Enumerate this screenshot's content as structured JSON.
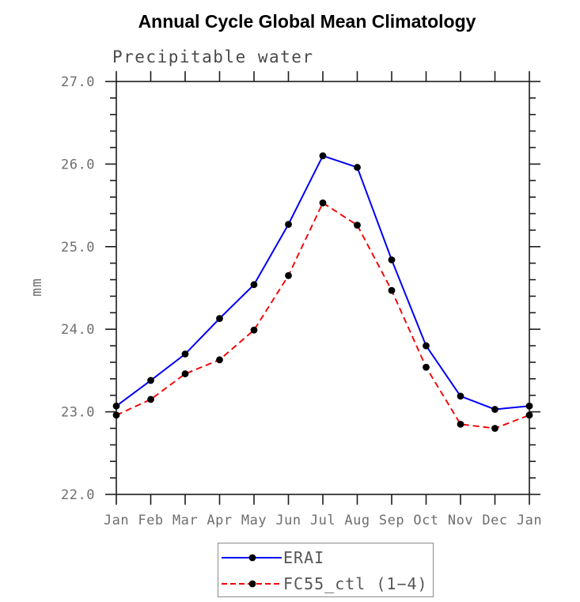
{
  "chart_data": {
    "type": "line",
    "title": "Annual Cycle Global Mean Climatology",
    "subtitle": "Precipitable water",
    "xlabel": "",
    "ylabel": "mm",
    "categories": [
      "Jan",
      "Feb",
      "Mar",
      "Apr",
      "May",
      "Jun",
      "Jul",
      "Aug",
      "Sep",
      "Oct",
      "Nov",
      "Dec",
      "Jan"
    ],
    "ylim": [
      22.0,
      27.0
    ],
    "ytick_major_interval": 1.0,
    "ytick_minor_interval": 0.2,
    "ytick_labels": [
      "22.0",
      "23.0",
      "24.0",
      "25.0",
      "26.0",
      "27.0"
    ],
    "grid": "off",
    "legend_position": "bottom-center",
    "series": [
      {
        "name": "ERAI",
        "color": "#0000f5",
        "line_style": "solid",
        "marker": "filled-circle",
        "marker_color": "#000000",
        "values": [
          23.07,
          23.38,
          23.7,
          24.13,
          24.54,
          25.27,
          26.1,
          25.96,
          24.84,
          23.8,
          23.19,
          23.03,
          23.07
        ]
      },
      {
        "name": "FC55_ctl (1−4)",
        "color": "#f50000",
        "line_style": "dashed",
        "marker": "filled-circle",
        "marker_color": "#000000",
        "values": [
          22.96,
          23.15,
          23.46,
          23.63,
          23.99,
          24.65,
          25.53,
          25.26,
          24.47,
          23.54,
          22.85,
          22.8,
          22.96
        ]
      }
    ]
  }
}
